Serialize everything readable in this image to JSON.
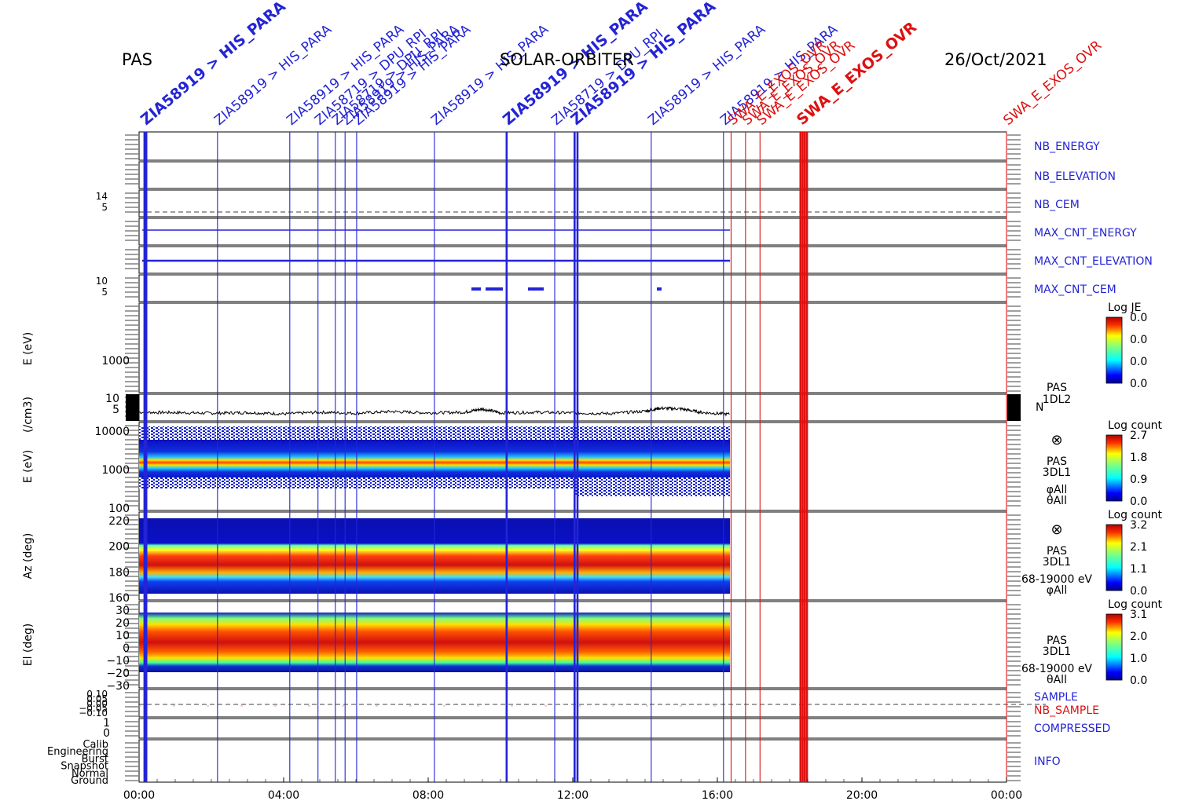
{
  "header": {
    "instrument": "PAS",
    "mission": "SOLAR-ORBITER",
    "date": "26/Oct/2021"
  },
  "colors": {
    "event_blue": "#2424d6",
    "event_red": "#dd1111",
    "frame": "#000000"
  },
  "chart_data": {
    "type": "multi-panel-timeseries",
    "x": {
      "unit": "hour",
      "range": [
        0,
        24
      ],
      "ticks": [
        0,
        4,
        8,
        12,
        16,
        20,
        24
      ],
      "tick_labels": [
        "00:00",
        "04:00",
        "08:00",
        "12:00",
        "16:00",
        "20:00",
        "00:00"
      ]
    },
    "data_end_hour": 16.35,
    "events": [
      {
        "t": 0.15,
        "label": "ZIA58919 > HIS_PARA",
        "color": "blue",
        "bold": true
      },
      {
        "t": 0.2,
        "label": "",
        "color": "blue",
        "bold": true
      },
      {
        "t": 2.17,
        "label": "ZIA58919 > HIS_PARA",
        "color": "blue",
        "bold": false
      },
      {
        "t": 4.17,
        "label": "ZIA58919 > HIS_PARA",
        "color": "blue",
        "bold": false
      },
      {
        "t": 4.95,
        "label": "ZIA58719 > DPU_RPI",
        "color": "blue",
        "bold": false
      },
      {
        "t": 5.43,
        "label": "ZIA58719 > DPU_RPI",
        "color": "blue",
        "bold": false
      },
      {
        "t": 5.7,
        "label": "ZIA58919 > HIS_PARA",
        "color": "blue",
        "bold": false
      },
      {
        "t": 6.02,
        "label": "ZIA58919 > HIS_PARA",
        "color": "blue",
        "bold": false
      },
      {
        "t": 8.17,
        "label": "ZIA58919 > HIS_PARA",
        "color": "blue",
        "bold": false
      },
      {
        "t": 10.17,
        "label": "ZIA58919 > HIS_PARA",
        "color": "blue",
        "bold": true
      },
      {
        "t": 11.5,
        "label": "ZIA58719 > DPU_RPI",
        "color": "blue",
        "bold": false
      },
      {
        "t": 12.05,
        "label": "ZIA58919 > HIS_PARA",
        "color": "blue",
        "bold": true
      },
      {
        "t": 12.13,
        "label": "",
        "color": "blue",
        "bold": true
      },
      {
        "t": 14.17,
        "label": "ZIA58919 > HIS_PARA",
        "color": "blue",
        "bold": false
      },
      {
        "t": 16.17,
        "label": "ZIA58919 > HIS_PARA",
        "color": "blue",
        "bold": false
      },
      {
        "t": 16.38,
        "label": "SWA_E_EXOS_OVR",
        "color": "red",
        "bold": false
      },
      {
        "t": 16.78,
        "label": "SWA_E_EXOS_OVR",
        "color": "red",
        "bold": false
      },
      {
        "t": 17.18,
        "label": "SWA_E_EXOS_OVR",
        "color": "red",
        "bold": false
      },
      {
        "t": 18.3,
        "label": "SWA_E_EXOS_OVR",
        "color": "red",
        "bold": true
      },
      {
        "t": 18.36,
        "label": "",
        "color": "red",
        "bold": true
      },
      {
        "t": 18.42,
        "label": "",
        "color": "red",
        "bold": true
      },
      {
        "t": 18.48,
        "label": "",
        "color": "red",
        "bold": true
      },
      {
        "t": 24.0,
        "label": "SWA_E_EXOS_OVR",
        "color": "red",
        "bold": false
      }
    ],
    "hk_panels": [
      {
        "id": "nb_energy",
        "label": "NB_ENERGY",
        "color": "blue"
      },
      {
        "id": "nb_elevation",
        "label": "NB_ELEVATION",
        "color": "blue"
      },
      {
        "id": "nb_cem",
        "label": "NB_CEM",
        "color": "blue",
        "ticks": [
          "14",
          "5"
        ]
      },
      {
        "id": "max_cnt_energy",
        "label": "MAX_CNT_ENERGY",
        "color": "blue"
      },
      {
        "id": "max_cnt_elevation",
        "label": "MAX_CNT_ELEVATION",
        "color": "blue"
      },
      {
        "id": "max_cnt_cem",
        "label": "MAX_CNT_CEM",
        "color": "blue",
        "ticks": [
          "10",
          "5"
        ]
      }
    ],
    "energy_panel": {
      "ylabel": "E (eV)",
      "ytick": "1000",
      "colorbar": {
        "title": "Log JE",
        "ticks": [
          "0.0",
          "0.0",
          "0.0",
          "0.0"
        ]
      }
    },
    "density_panel": {
      "ylabel": "(/cm3)",
      "yticks": [
        "10",
        "5"
      ],
      "label_lines": [
        "PAS",
        "1DL2"
      ],
      "side": "N",
      "series": [
        {
          "t": 0,
          "n": 5.6
        },
        {
          "t": 1,
          "n": 5.5
        },
        {
          "t": 2,
          "n": 5.3
        },
        {
          "t": 3,
          "n": 5.5
        },
        {
          "t": 4,
          "n": 5.1
        },
        {
          "t": 5,
          "n": 5.6
        },
        {
          "t": 6,
          "n": 5.3
        },
        {
          "t": 7,
          "n": 5.8
        },
        {
          "t": 8,
          "n": 5.4
        },
        {
          "t": 9,
          "n": 5.6
        },
        {
          "t": 9.5,
          "n": 6.6
        },
        {
          "t": 10,
          "n": 5.4
        },
        {
          "t": 11,
          "n": 5.6
        },
        {
          "t": 12,
          "n": 5.4
        },
        {
          "t": 13,
          "n": 5.2
        },
        {
          "t": 14,
          "n": 5.9
        },
        {
          "t": 14.4,
          "n": 6.8
        },
        {
          "t": 15,
          "n": 6.6
        },
        {
          "t": 15.6,
          "n": 5.5
        },
        {
          "t": 16.35,
          "n": 5.0
        }
      ]
    },
    "spectrogram_energy": {
      "ylabel": "E (eV)",
      "yticks": [
        "10000",
        "1000",
        "100"
      ],
      "label_lines": [
        "PAS",
        "3DL1",
        "φAll",
        "θAll"
      ],
      "colorbar": {
        "title": "Log count",
        "ticks": [
          "2.7",
          "1.8",
          "0.9",
          "0.0"
        ]
      }
    },
    "spectrogram_az": {
      "ylabel": "Az (deg)",
      "yticks": [
        "220",
        "200",
        "180",
        "160"
      ],
      "label_lines": [
        "PAS",
        "3DL1",
        "68-19000 eV",
        "φAll"
      ],
      "colorbar": {
        "title": "Log count",
        "ticks": [
          "3.2",
          "2.1",
          "1.1",
          "0.0"
        ]
      }
    },
    "spectrogram_el": {
      "ylabel": "El (deg)",
      "yticks": [
        "30",
        "20",
        "10",
        "0",
        "−10",
        "−20",
        "−30"
      ],
      "label_lines": [
        "PAS",
        "3DL1",
        "68-19000 eV",
        "θAll"
      ],
      "colorbar": {
        "title": "Log count",
        "ticks": [
          "3.1",
          "2.0",
          "1.0",
          "0.0"
        ]
      }
    },
    "sample_panel": {
      "labels": [
        {
          "text": "SAMPLE",
          "color": "blue"
        },
        {
          "text": "NB_SAMPLE",
          "color": "red"
        }
      ],
      "yticks": [
        "0.10",
        "0.05",
        "0.00",
        "−0.05",
        "−0.10"
      ]
    },
    "compressed_panel": {
      "label": "COMPRESSED",
      "color": "blue",
      "yticks": [
        "1",
        "0"
      ]
    },
    "info_panel": {
      "label": "INFO",
      "color": "blue",
      "ytick_labels": [
        "Calib",
        "Engineering",
        "Burst",
        "Snapshot",
        "Normal",
        "Ground"
      ]
    }
  }
}
